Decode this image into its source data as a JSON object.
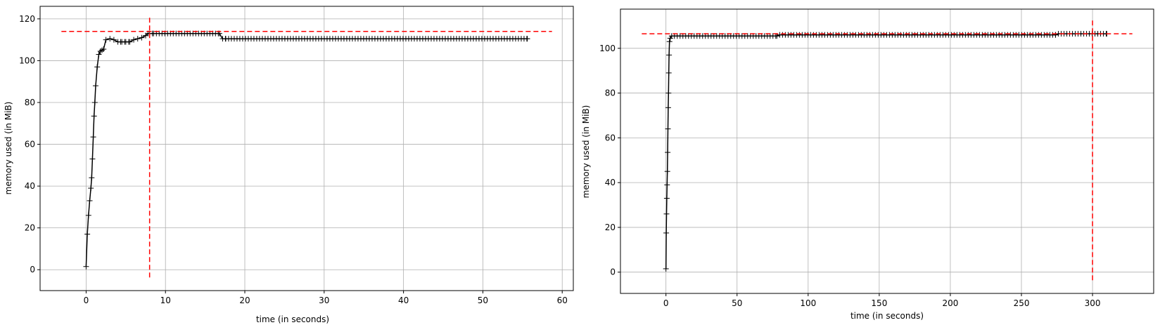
{
  "colors": {
    "series": "#000000",
    "reference": "#ff0000",
    "grid": "#b0b0b0"
  },
  "chart_data": [
    {
      "type": "line",
      "marker": "plus",
      "grid": true,
      "xlabel": "time (in seconds)",
      "ylabel": "memory used (in MiB)",
      "xlim": [
        -5.8,
        61.4
      ],
      "ylim": [
        -10,
        126
      ],
      "xticks": [
        0,
        10,
        20,
        30,
        40,
        50,
        60
      ],
      "yticks": [
        0,
        20,
        40,
        60,
        80,
        100,
        120
      ],
      "series": [
        {
          "x": [
            0,
            0.15,
            0.3,
            0.45,
            0.6,
            0.7,
            0.8,
            0.9,
            1.0,
            1.1,
            1.2,
            1.4,
            1.6,
            1.8,
            2.0,
            2.2,
            2.5,
            3.0,
            3.5,
            4.0,
            4.5,
            5.0,
            5.5,
            6.0,
            6.5,
            7.0,
            7.5,
            7.8,
            8.0,
            8.5,
            16.8,
            17.2,
            17.6,
            55.6
          ],
          "y": [
            1.5,
            17,
            26,
            33,
            39,
            44,
            53,
            63.5,
            73.5,
            80,
            88,
            97,
            103,
            104.5,
            105,
            105.5,
            110,
            110.5,
            110,
            109,
            109,
            109,
            109,
            110,
            110.5,
            111,
            112,
            113,
            113,
            113,
            113,
            110.5,
            110.5,
            110.5
          ]
        }
      ],
      "hlines": [
        114
      ],
      "vlines": [
        8
      ]
    },
    {
      "type": "line",
      "marker": "plus",
      "grid": true,
      "xlabel": "time (in seconds)",
      "ylabel": "memory used (in MiB)",
      "xlim": [
        -32,
        343
      ],
      "ylim": [
        -9.5,
        117.5
      ],
      "xticks": [
        0,
        50,
        100,
        150,
        200,
        250,
        300
      ],
      "yticks": [
        0,
        20,
        40,
        60,
        80,
        100
      ],
      "series": [
        {
          "x": [
            0,
            0.2,
            0.4,
            0.6,
            0.8,
            1.0,
            1.2,
            1.4,
            1.6,
            1.8,
            2.0,
            2.2,
            2.5,
            3.0,
            4.0,
            78,
            80,
            274,
            276,
            310
          ],
          "y": [
            1.5,
            17.5,
            26,
            33,
            39,
            45,
            53.5,
            64,
            73.5,
            80,
            89,
            97,
            103,
            104.5,
            105.5,
            105.5,
            106,
            106,
            106.5,
            106.5
          ]
        }
      ],
      "hlines": [
        106.5
      ],
      "vlines": [
        300
      ]
    }
  ]
}
